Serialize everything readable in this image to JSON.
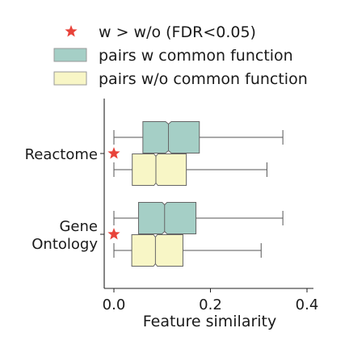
{
  "chart_data": {
    "type": "boxplot",
    "orientation": "horizontal",
    "xlabel": "Feature similarity",
    "xlim": [
      -0.02,
      0.4
    ],
    "xticks": [
      0.0,
      0.2,
      0.4
    ],
    "xtick_labels": [
      "0.0",
      "0.2",
      "0.4"
    ],
    "categories": [
      {
        "label_lines": [
          "Reactome"
        ]
      },
      {
        "label_lines": [
          "Gene",
          "Ontology"
        ]
      }
    ],
    "legend": {
      "placement": "top",
      "entries": [
        {
          "marker": "star",
          "label": "w > w/o (FDR<0.05)",
          "color": "#e8433a"
        },
        {
          "marker": "box",
          "label": "pairs w common function",
          "color": "#a5cfc6"
        },
        {
          "marker": "box",
          "label": "pairs w/o common function",
          "color": "#f8f6c6"
        }
      ]
    },
    "series": [
      {
        "color": "#a5cfc6",
        "boxes": [
          {
            "category": "Reactome",
            "whisker_low": 0.0,
            "q1": 0.06,
            "median": 0.113,
            "q3": 0.177,
            "whisker_high": 0.35,
            "notch_low": 0.107,
            "notch_high": 0.119
          },
          {
            "category": "Gene Ontology",
            "whisker_low": 0.0,
            "q1": 0.051,
            "median": 0.105,
            "q3": 0.17,
            "whisker_high": 0.35,
            "notch_low": 0.1,
            "notch_high": 0.11
          }
        ]
      },
      {
        "color": "#f8f6c6",
        "boxes": [
          {
            "category": "Reactome",
            "whisker_low": 0.0,
            "q1": 0.038,
            "median": 0.087,
            "q3": 0.15,
            "whisker_high": 0.317,
            "notch_low": 0.083,
            "notch_high": 0.091
          },
          {
            "category": "Gene Ontology",
            "whisker_low": 0.0,
            "q1": 0.037,
            "median": 0.086,
            "q3": 0.143,
            "whisker_high": 0.305,
            "notch_low": 0.082,
            "notch_high": 0.09
          }
        ]
      }
    ],
    "significance": [
      {
        "category": "Reactome",
        "marker": "star",
        "x": 0.0
      },
      {
        "category": "Gene Ontology",
        "marker": "star",
        "x": 0.0
      }
    ]
  }
}
